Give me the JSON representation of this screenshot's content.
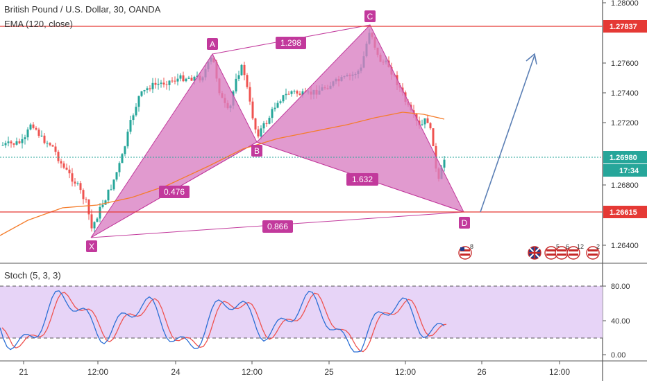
{
  "header": {
    "symbol_title": "British Pound / U.S. Dollar, 30, OANDA",
    "ema_label": "EMA (120, close)"
  },
  "oscillator": {
    "label": "Stoch (5, 3, 3)"
  },
  "price_axis": {
    "ticks": [
      "1.28000",
      "1.27600",
      "1.27400",
      "1.27200",
      "1.26800",
      "1.26400"
    ],
    "level_top": "1.27837",
    "level_bottom": "1.26615",
    "current_price": "1.26980",
    "countdown": "17:34"
  },
  "stoch_axis": {
    "ticks": [
      "80.00",
      "40.00",
      "0.00"
    ]
  },
  "time_axis": {
    "ticks": [
      "21",
      "12:00",
      "24",
      "12:00",
      "25",
      "12:00",
      "26",
      "12:00"
    ]
  },
  "pattern": {
    "points": [
      "X",
      "A",
      "B",
      "C",
      "D"
    ],
    "ratios": {
      "xb": "0.476",
      "ab_ac": "1.298",
      "bd": "1.632",
      "xd": "0.866"
    }
  },
  "events": [
    {
      "name": "us-flag-icon",
      "count": "8"
    },
    {
      "name": "uk-flag-icon",
      "count": ""
    },
    {
      "name": "us-flag-icon",
      "count": "5"
    },
    {
      "name": "us-flag-icon",
      "count": "6"
    },
    {
      "name": "us-flag-icon",
      "count": "12"
    },
    {
      "name": "us-flag-icon",
      "count": "2"
    }
  ],
  "colors": {
    "bull": "#26a69a",
    "bear": "#ef5350",
    "pattern_fill": "#d97ec2",
    "pattern_stroke": "#c2399c",
    "level": "#e53935",
    "ema": "#f57c2a",
    "projection": "#5b7fb5",
    "stoch_k": "#2b6fd6",
    "stoch_d": "#ef5350",
    "stoch_band": "#e7d4f7"
  }
}
